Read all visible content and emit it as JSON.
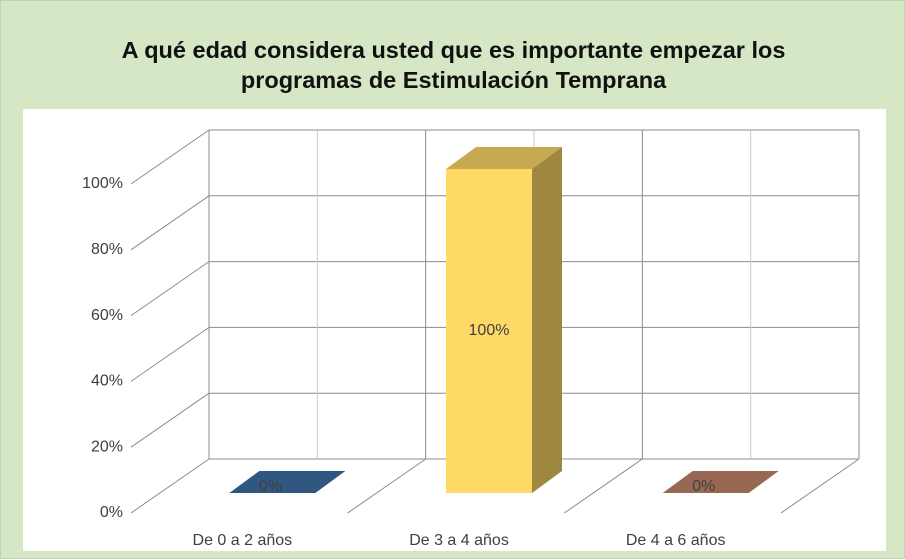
{
  "chart_data": {
    "type": "bar3d",
    "title": "A qué edad considera usted que es importante empezar los programas de Estimulación Temprana",
    "categories": [
      "De 0 a 2 años",
      "De 3 a  4 años",
      "De 4 a 6 años"
    ],
    "values": [
      0,
      100,
      0
    ],
    "value_labels": [
      "0%",
      "100%",
      "0%"
    ],
    "colors": [
      "#3d6fa3",
      "#ffd966",
      "#c4856a"
    ],
    "ylim": [
      0,
      100
    ],
    "yticks": [
      {
        "value": 0,
        "label": "0%"
      },
      {
        "value": 20,
        "label": "20%"
      },
      {
        "value": 40,
        "label": "40%"
      },
      {
        "value": 60,
        "label": "60%"
      },
      {
        "value": 80,
        "label": "80%"
      },
      {
        "value": 100,
        "label": "100%"
      }
    ],
    "grid": true
  }
}
